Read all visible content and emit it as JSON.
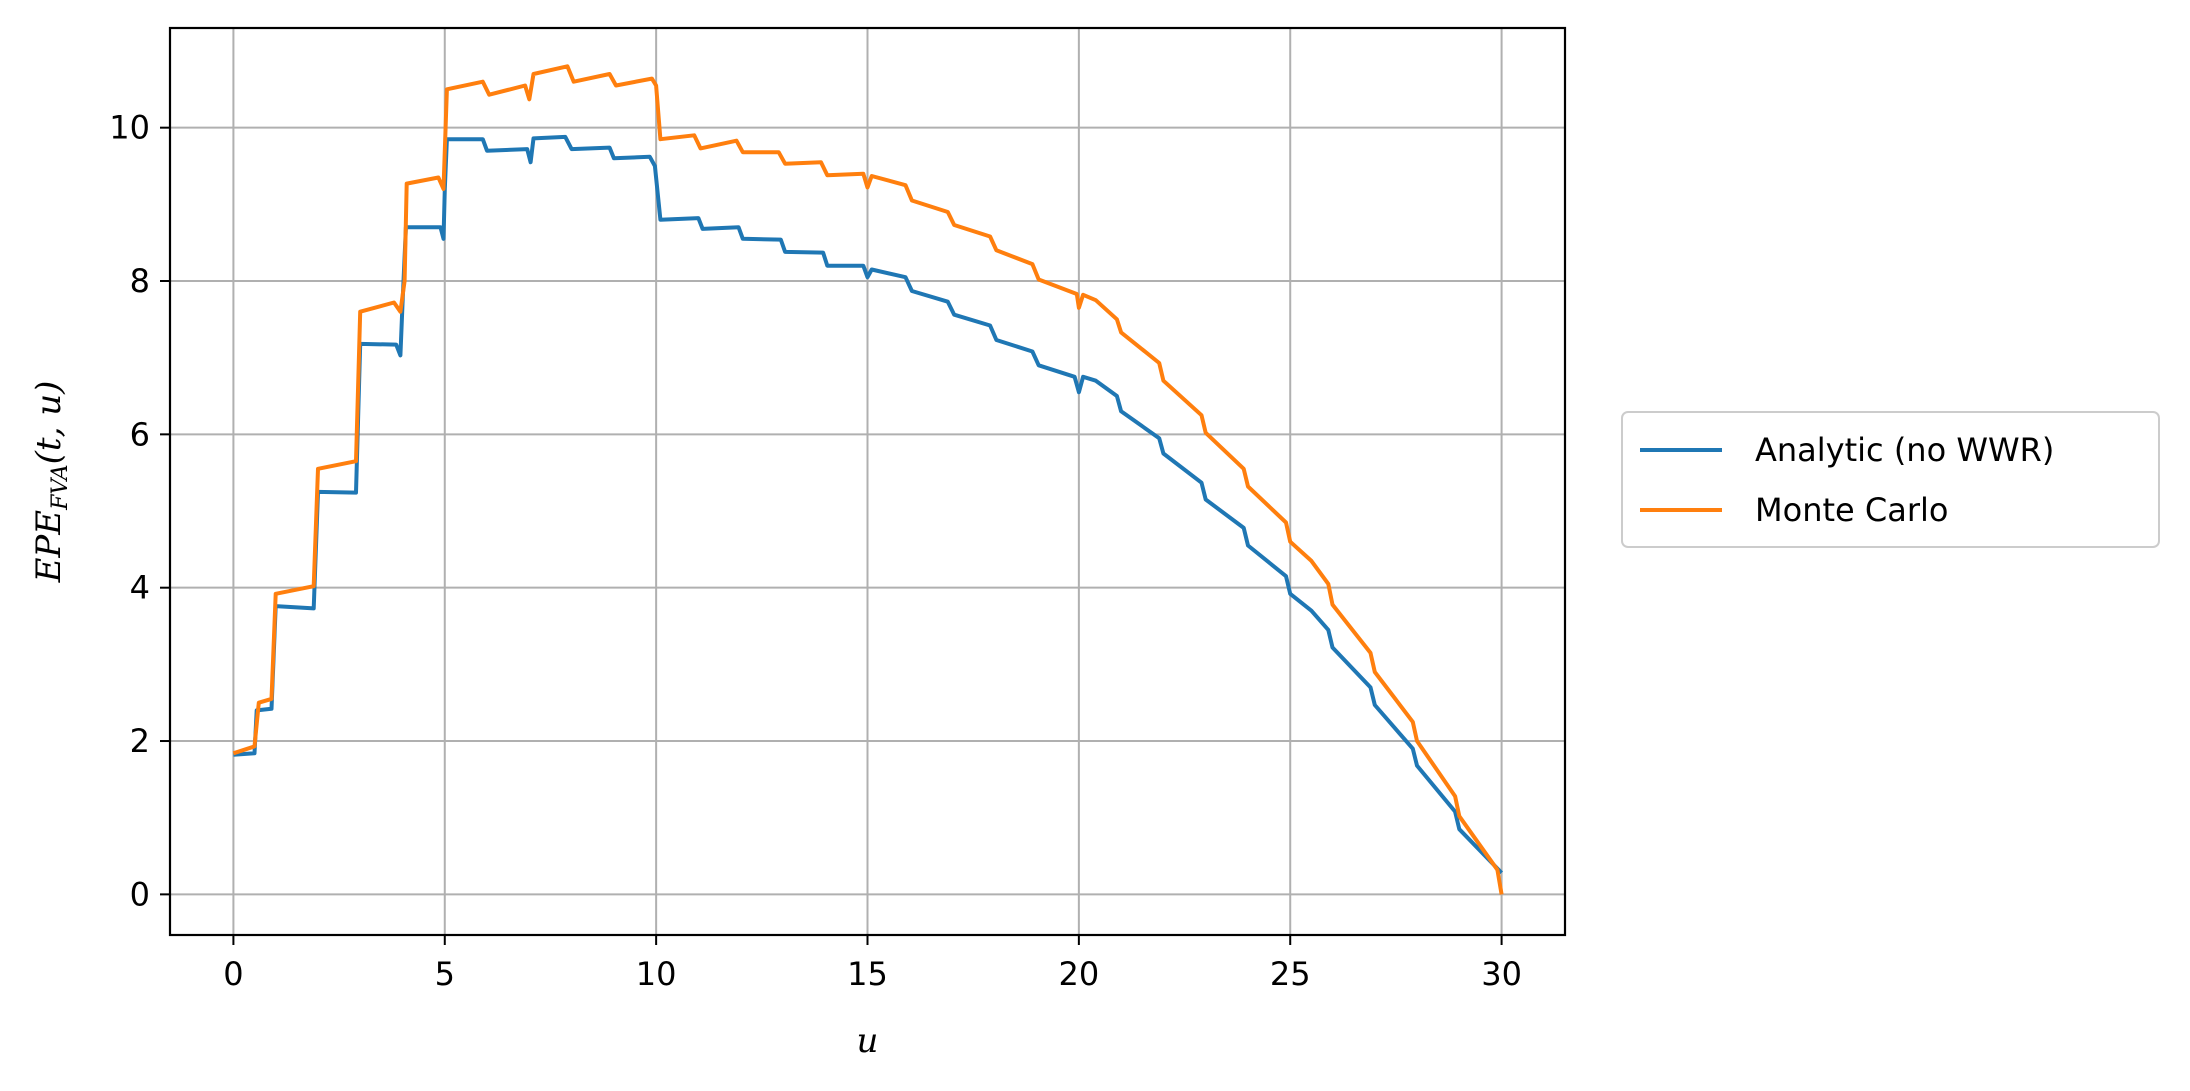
{
  "chart_data": {
    "type": "line",
    "title": "",
    "xlabel": "u",
    "ylabel": "EPE_FVA(t, u)",
    "ylabel_main": "EPE",
    "ylabel_sub": "FVA",
    "ylabel_args": "(t, u)",
    "xlim": [
      -1.5,
      31.5
    ],
    "ylim": [
      -0.53,
      11.3
    ],
    "xticks": [
      0,
      5,
      10,
      15,
      20,
      25,
      30
    ],
    "yticks": [
      0,
      2,
      4,
      6,
      8,
      10
    ],
    "grid": true,
    "legend_position": "outside-right",
    "series": [
      {
        "name": "Analytic (no WWR)",
        "color": "#1f77b4",
        "points": [
          [
            0,
            1.82
          ],
          [
            0.5,
            1.84
          ],
          [
            0.55,
            2.4
          ],
          [
            0.9,
            2.42
          ],
          [
            1.0,
            3.76
          ],
          [
            1.9,
            3.73
          ],
          [
            2.0,
            5.25
          ],
          [
            2.9,
            5.24
          ],
          [
            3.0,
            7.18
          ],
          [
            3.85,
            7.17
          ],
          [
            3.95,
            7.03
          ],
          [
            4.0,
            7.7
          ],
          [
            4.08,
            8.7
          ],
          [
            4.9,
            8.7
          ],
          [
            4.97,
            8.55
          ],
          [
            5.0,
            9.2
          ],
          [
            5.05,
            9.85
          ],
          [
            5.9,
            9.85
          ],
          [
            6.0,
            9.7
          ],
          [
            6.95,
            9.72
          ],
          [
            7.03,
            9.55
          ],
          [
            7.1,
            9.86
          ],
          [
            7.85,
            9.88
          ],
          [
            8.0,
            9.72
          ],
          [
            8.9,
            9.74
          ],
          [
            9.0,
            9.6
          ],
          [
            9.85,
            9.62
          ],
          [
            9.97,
            9.5
          ],
          [
            10.1,
            8.8
          ],
          [
            11.0,
            8.82
          ],
          [
            11.1,
            8.68
          ],
          [
            11.95,
            8.7
          ],
          [
            12.05,
            8.55
          ],
          [
            12.95,
            8.54
          ],
          [
            13.05,
            8.38
          ],
          [
            13.95,
            8.37
          ],
          [
            14.05,
            8.2
          ],
          [
            14.9,
            8.2
          ],
          [
            15.0,
            8.05
          ],
          [
            15.1,
            8.15
          ],
          [
            15.9,
            8.05
          ],
          [
            16.05,
            7.87
          ],
          [
            16.9,
            7.73
          ],
          [
            17.05,
            7.56
          ],
          [
            17.9,
            7.42
          ],
          [
            18.05,
            7.23
          ],
          [
            18.9,
            7.08
          ],
          [
            19.05,
            6.9
          ],
          [
            19.9,
            6.75
          ],
          [
            20.0,
            6.55
          ],
          [
            20.1,
            6.75
          ],
          [
            20.4,
            6.7
          ],
          [
            20.9,
            6.5
          ],
          [
            21.0,
            6.3
          ],
          [
            21.9,
            5.95
          ],
          [
            22.0,
            5.75
          ],
          [
            22.9,
            5.37
          ],
          [
            23.0,
            5.15
          ],
          [
            23.9,
            4.78
          ],
          [
            24.0,
            4.55
          ],
          [
            24.9,
            4.15
          ],
          [
            25.0,
            3.92
          ],
          [
            25.5,
            3.7
          ],
          [
            25.9,
            3.45
          ],
          [
            26.0,
            3.22
          ],
          [
            26.9,
            2.7
          ],
          [
            27.0,
            2.47
          ],
          [
            27.9,
            1.9
          ],
          [
            28.0,
            1.68
          ],
          [
            28.9,
            1.08
          ],
          [
            29.0,
            0.85
          ],
          [
            30.0,
            0.28
          ]
        ]
      },
      {
        "name": "Monte Carlo",
        "color": "#ff7f0e",
        "points": [
          [
            0,
            1.84
          ],
          [
            0.5,
            1.93
          ],
          [
            0.6,
            2.5
          ],
          [
            0.9,
            2.55
          ],
          [
            1.0,
            3.92
          ],
          [
            1.9,
            4.02
          ],
          [
            2.0,
            5.55
          ],
          [
            2.9,
            5.65
          ],
          [
            3.0,
            7.6
          ],
          [
            3.8,
            7.72
          ],
          [
            3.95,
            7.6
          ],
          [
            4.05,
            8.0
          ],
          [
            4.1,
            9.27
          ],
          [
            4.85,
            9.35
          ],
          [
            4.97,
            9.2
          ],
          [
            5.05,
            10.5
          ],
          [
            5.9,
            10.6
          ],
          [
            6.05,
            10.43
          ],
          [
            6.9,
            10.55
          ],
          [
            7.0,
            10.37
          ],
          [
            7.1,
            10.7
          ],
          [
            7.9,
            10.8
          ],
          [
            8.05,
            10.6
          ],
          [
            8.9,
            10.7
          ],
          [
            9.05,
            10.55
          ],
          [
            9.9,
            10.64
          ],
          [
            10.0,
            10.55
          ],
          [
            10.1,
            9.85
          ],
          [
            10.9,
            9.9
          ],
          [
            11.05,
            9.73
          ],
          [
            11.9,
            9.83
          ],
          [
            12.05,
            9.68
          ],
          [
            12.9,
            9.68
          ],
          [
            13.05,
            9.53
          ],
          [
            13.9,
            9.55
          ],
          [
            14.05,
            9.38
          ],
          [
            14.9,
            9.4
          ],
          [
            15.0,
            9.22
          ],
          [
            15.1,
            9.37
          ],
          [
            15.9,
            9.25
          ],
          [
            16.05,
            9.05
          ],
          [
            16.9,
            8.9
          ],
          [
            17.05,
            8.73
          ],
          [
            17.9,
            8.58
          ],
          [
            18.05,
            8.4
          ],
          [
            18.9,
            8.22
          ],
          [
            19.05,
            8.02
          ],
          [
            19.95,
            7.83
          ],
          [
            20.0,
            7.65
          ],
          [
            20.1,
            7.82
          ],
          [
            20.4,
            7.75
          ],
          [
            20.9,
            7.5
          ],
          [
            21.0,
            7.33
          ],
          [
            21.9,
            6.93
          ],
          [
            22.0,
            6.7
          ],
          [
            22.9,
            6.25
          ],
          [
            23.0,
            6.02
          ],
          [
            23.9,
            5.55
          ],
          [
            24.0,
            5.32
          ],
          [
            24.9,
            4.85
          ],
          [
            25.0,
            4.6
          ],
          [
            25.5,
            4.35
          ],
          [
            25.9,
            4.05
          ],
          [
            26.0,
            3.78
          ],
          [
            26.9,
            3.15
          ],
          [
            27.0,
            2.9
          ],
          [
            27.9,
            2.25
          ],
          [
            28.0,
            2.0
          ],
          [
            28.9,
            1.28
          ],
          [
            29.0,
            1.02
          ],
          [
            29.9,
            0.32
          ],
          [
            30.0,
            0.0
          ]
        ]
      }
    ]
  }
}
